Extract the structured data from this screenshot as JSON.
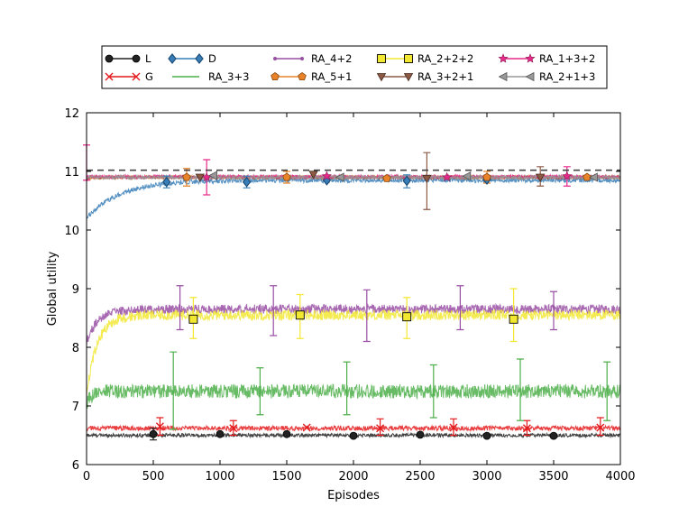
{
  "chart_data": {
    "type": "line",
    "title": "",
    "xlabel": "Episodes",
    "ylabel": "Global utility",
    "xlim": [
      0,
      4000
    ],
    "ylim": [
      6,
      12
    ],
    "xticks": [
      0,
      500,
      1000,
      1500,
      2000,
      2500,
      3000,
      3500,
      4000
    ],
    "yticks": [
      6,
      7,
      8,
      9,
      10,
      11,
      12
    ],
    "grid": false,
    "legend_position": "top, above plot",
    "reference_line": {
      "y": 11.02,
      "style": "dashed",
      "color": "#444444"
    },
    "series": [
      {
        "name": "L",
        "color": "#222222",
        "marker": "circle",
        "start": 6.5,
        "plateau": 6.5,
        "rise": 5,
        "noise": 0.03,
        "markers_x": [
          500,
          1000,
          1500,
          2000,
          2500,
          3000,
          3500
        ],
        "markers_y": [
          6.52,
          6.52,
          6.52,
          6.49,
          6.51,
          6.49,
          6.49
        ],
        "errorbars": [
          {
            "x": 500,
            "lo": 6.42,
            "hi": 6.62
          }
        ]
      },
      {
        "name": "G",
        "color": "#e41a1c",
        "marker": "x",
        "start": 6.6,
        "plateau": 6.62,
        "rise": 5,
        "noise": 0.04,
        "markers_x": [
          550,
          1100,
          1650,
          2200,
          2750,
          3300,
          3850
        ],
        "markers_y": [
          6.65,
          6.62,
          6.63,
          6.62,
          6.63,
          6.62,
          6.63
        ],
        "errorbars": [
          {
            "x": 550,
            "lo": 6.5,
            "hi": 6.8
          },
          {
            "x": 1100,
            "lo": 6.5,
            "hi": 6.75
          },
          {
            "x": 2200,
            "lo": 6.5,
            "hi": 6.78
          },
          {
            "x": 2750,
            "lo": 6.5,
            "hi": 6.78
          },
          {
            "x": 3300,
            "lo": 6.5,
            "hi": 6.75
          },
          {
            "x": 3850,
            "lo": 6.5,
            "hi": 6.8
          }
        ]
      },
      {
        "name": "D",
        "color": "#377eb8",
        "marker": "diamond",
        "start": 10.2,
        "plateau": 10.85,
        "rise": 250,
        "noise": 0.04,
        "markers_x": [
          600,
          1200,
          1800,
          2400,
          3000
        ],
        "markers_y": [
          10.82,
          10.82,
          10.85,
          10.84,
          10.86
        ],
        "errorbars": [
          {
            "x": 600,
            "lo": 10.72,
            "hi": 10.92
          },
          {
            "x": 1200,
            "lo": 10.72,
            "hi": 10.92
          },
          {
            "x": 2400,
            "lo": 10.72,
            "hi": 10.94
          }
        ]
      },
      {
        "name": "RA_3+3",
        "color": "#4daf4a",
        "marker": "none",
        "start": 7.0,
        "plateau": 7.25,
        "rise": 30,
        "noise": 0.12,
        "markers_x": [],
        "markers_y": [],
        "errorbars": [
          {
            "x": 650,
            "lo": 6.6,
            "hi": 7.92
          },
          {
            "x": 1300,
            "lo": 6.85,
            "hi": 7.65
          },
          {
            "x": 1950,
            "lo": 6.85,
            "hi": 7.75
          },
          {
            "x": 2600,
            "lo": 6.8,
            "hi": 7.7
          },
          {
            "x": 3250,
            "lo": 6.75,
            "hi": 7.8
          },
          {
            "x": 3900,
            "lo": 6.75,
            "hi": 7.75
          }
        ]
      },
      {
        "name": "RA_4+2",
        "color": "#984ea3",
        "marker": "dot",
        "start": 8.1,
        "plateau": 8.65,
        "rise": 90,
        "noise": 0.08,
        "markers_x": [],
        "markers_y": [],
        "errorbars": [
          {
            "x": 700,
            "lo": 8.3,
            "hi": 9.05
          },
          {
            "x": 1400,
            "lo": 8.2,
            "hi": 9.05
          },
          {
            "x": 2100,
            "lo": 8.1,
            "hi": 8.98
          },
          {
            "x": 2800,
            "lo": 8.3,
            "hi": 9.05
          },
          {
            "x": 3500,
            "lo": 8.3,
            "hi": 8.95
          }
        ]
      },
      {
        "name": "RA_5+1",
        "color": "#e8832a",
        "marker": "pentagon",
        "start": 10.85,
        "plateau": 10.9,
        "rise": 10,
        "noise": 0.03,
        "markers_x": [
          750,
          1500,
          2250,
          3000,
          3750
        ],
        "markers_y": [
          10.9,
          10.9,
          10.88,
          10.9,
          10.9
        ],
        "errorbars": [
          {
            "x": 750,
            "lo": 10.75,
            "hi": 11.05
          },
          {
            "x": 1500,
            "lo": 10.8,
            "hi": 11.0
          },
          {
            "x": 3000,
            "lo": 10.8,
            "hi": 11.0
          }
        ]
      },
      {
        "name": "RA_2+2+2",
        "color": "#f2e832",
        "marker": "square",
        "start": 7.2,
        "plateau": 8.55,
        "rise": 80,
        "noise": 0.09,
        "markers_x": [
          800,
          1600,
          2400,
          3200
        ],
        "markers_y": [
          8.48,
          8.55,
          8.52,
          8.48
        ],
        "errorbars": [
          {
            "x": 800,
            "lo": 8.15,
            "hi": 8.85
          },
          {
            "x": 1600,
            "lo": 8.15,
            "hi": 8.9
          },
          {
            "x": 2400,
            "lo": 8.15,
            "hi": 8.85
          },
          {
            "x": 3200,
            "lo": 8.1,
            "hi": 9.0
          }
        ]
      },
      {
        "name": "RA_3+2+1",
        "color": "#8c5a45",
        "marker": "triangle-down",
        "start": 10.85,
        "plateau": 10.9,
        "rise": 10,
        "noise": 0.03,
        "markers_x": [
          850,
          1700,
          2550,
          3400
        ],
        "markers_y": [
          10.9,
          10.95,
          10.88,
          10.9
        ],
        "errorbars": [
          {
            "x": 2550,
            "lo": 10.35,
            "hi": 11.32
          },
          {
            "x": 3400,
            "lo": 10.75,
            "hi": 11.08
          }
        ]
      },
      {
        "name": "RA_1+3+2",
        "color": "#e7298a",
        "marker": "star",
        "start": 10.9,
        "plateau": 10.91,
        "rise": 10,
        "noise": 0.03,
        "markers_x": [
          900,
          1800,
          2700,
          3600
        ],
        "markers_y": [
          10.9,
          10.92,
          10.9,
          10.92
        ],
        "errorbars": [
          {
            "x": 0,
            "lo": 10.85,
            "hi": 11.45
          },
          {
            "x": 900,
            "lo": 10.6,
            "hi": 11.2
          },
          {
            "x": 3600,
            "lo": 10.75,
            "hi": 11.08
          }
        ]
      },
      {
        "name": "RA_2+1+3",
        "color": "#999999",
        "marker": "triangle-left",
        "start": 10.88,
        "plateau": 10.9,
        "rise": 10,
        "noise": 0.03,
        "markers_x": [
          950,
          1900,
          2850,
          3800
        ],
        "markers_y": [
          10.93,
          10.9,
          10.92,
          10.9
        ],
        "errorbars": []
      }
    ]
  }
}
